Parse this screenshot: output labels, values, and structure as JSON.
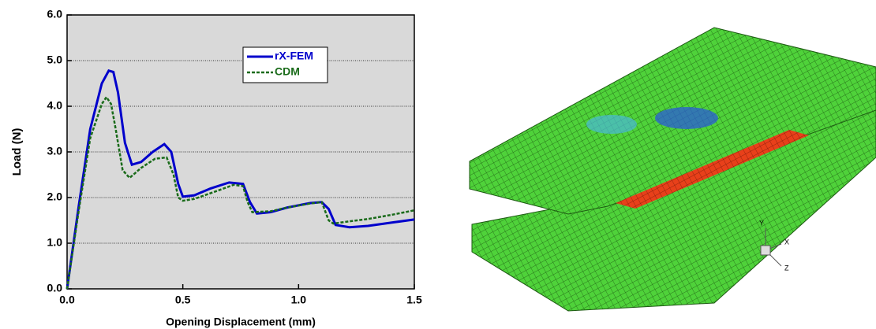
{
  "chart_data": {
    "type": "line",
    "x_label": "Opening Displacement (mm)",
    "y_label": "Load (N)",
    "xlim": [
      0,
      1.5
    ],
    "ylim": [
      0,
      6
    ],
    "xticks": [
      {
        "value": 0,
        "label": "0.0"
      },
      0.5,
      {
        "value": 1,
        "label": "1.0"
      },
      1.5
    ],
    "yticks": [
      {
        "value": 0,
        "label": "0.0"
      },
      {
        "value": 1,
        "label": "1.0"
      },
      {
        "value": 2,
        "label": "2.0"
      },
      {
        "value": 3,
        "label": "3.0"
      },
      {
        "value": 4,
        "label": "4.0"
      },
      {
        "value": 5,
        "label": "5.0"
      },
      {
        "value": 6,
        "label": "6.0"
      }
    ],
    "grid": true,
    "legend": "upper center",
    "series": [
      {
        "name": "rX-FEM",
        "color": "#0000cc",
        "dash": false,
        "x": [
          0,
          0.05,
          0.1,
          0.15,
          0.18,
          0.2,
          0.22,
          0.25,
          0.28,
          0.32,
          0.37,
          0.42,
          0.45,
          0.48,
          0.5,
          0.55,
          0.62,
          0.7,
          0.76,
          0.79,
          0.82,
          0.88,
          0.95,
          1.05,
          1.1,
          1.13,
          1.16,
          1.22,
          1.3,
          1.4,
          1.5
        ],
        "values": [
          0,
          1.8,
          3.5,
          4.5,
          4.78,
          4.75,
          4.3,
          3.2,
          2.72,
          2.78,
          3.0,
          3.17,
          3.0,
          2.3,
          2.02,
          2.05,
          2.2,
          2.33,
          2.3,
          1.9,
          1.65,
          1.68,
          1.78,
          1.88,
          1.9,
          1.75,
          1.4,
          1.35,
          1.38,
          1.45,
          1.52
        ]
      },
      {
        "name": "CDM",
        "color": "#1a6b1a",
        "dash": true,
        "x": [
          0,
          0.05,
          0.1,
          0.15,
          0.17,
          0.19,
          0.21,
          0.24,
          0.27,
          0.32,
          0.38,
          0.43,
          0.46,
          0.48,
          0.5,
          0.55,
          0.65,
          0.72,
          0.76,
          0.78,
          0.8,
          0.88,
          0.95,
          1.05,
          1.1,
          1.13,
          1.15,
          1.22,
          1.3,
          1.4,
          1.5
        ],
        "values": [
          0,
          1.7,
          3.3,
          4.05,
          4.2,
          4.05,
          3.5,
          2.6,
          2.43,
          2.65,
          2.85,
          2.88,
          2.5,
          2.0,
          1.93,
          1.97,
          2.15,
          2.28,
          2.25,
          1.9,
          1.68,
          1.7,
          1.78,
          1.87,
          1.9,
          1.5,
          1.43,
          1.48,
          1.53,
          1.62,
          1.72
        ]
      }
    ]
  },
  "figure_image": {
    "axis_labels": [
      "Y",
      "X",
      "Z"
    ]
  }
}
